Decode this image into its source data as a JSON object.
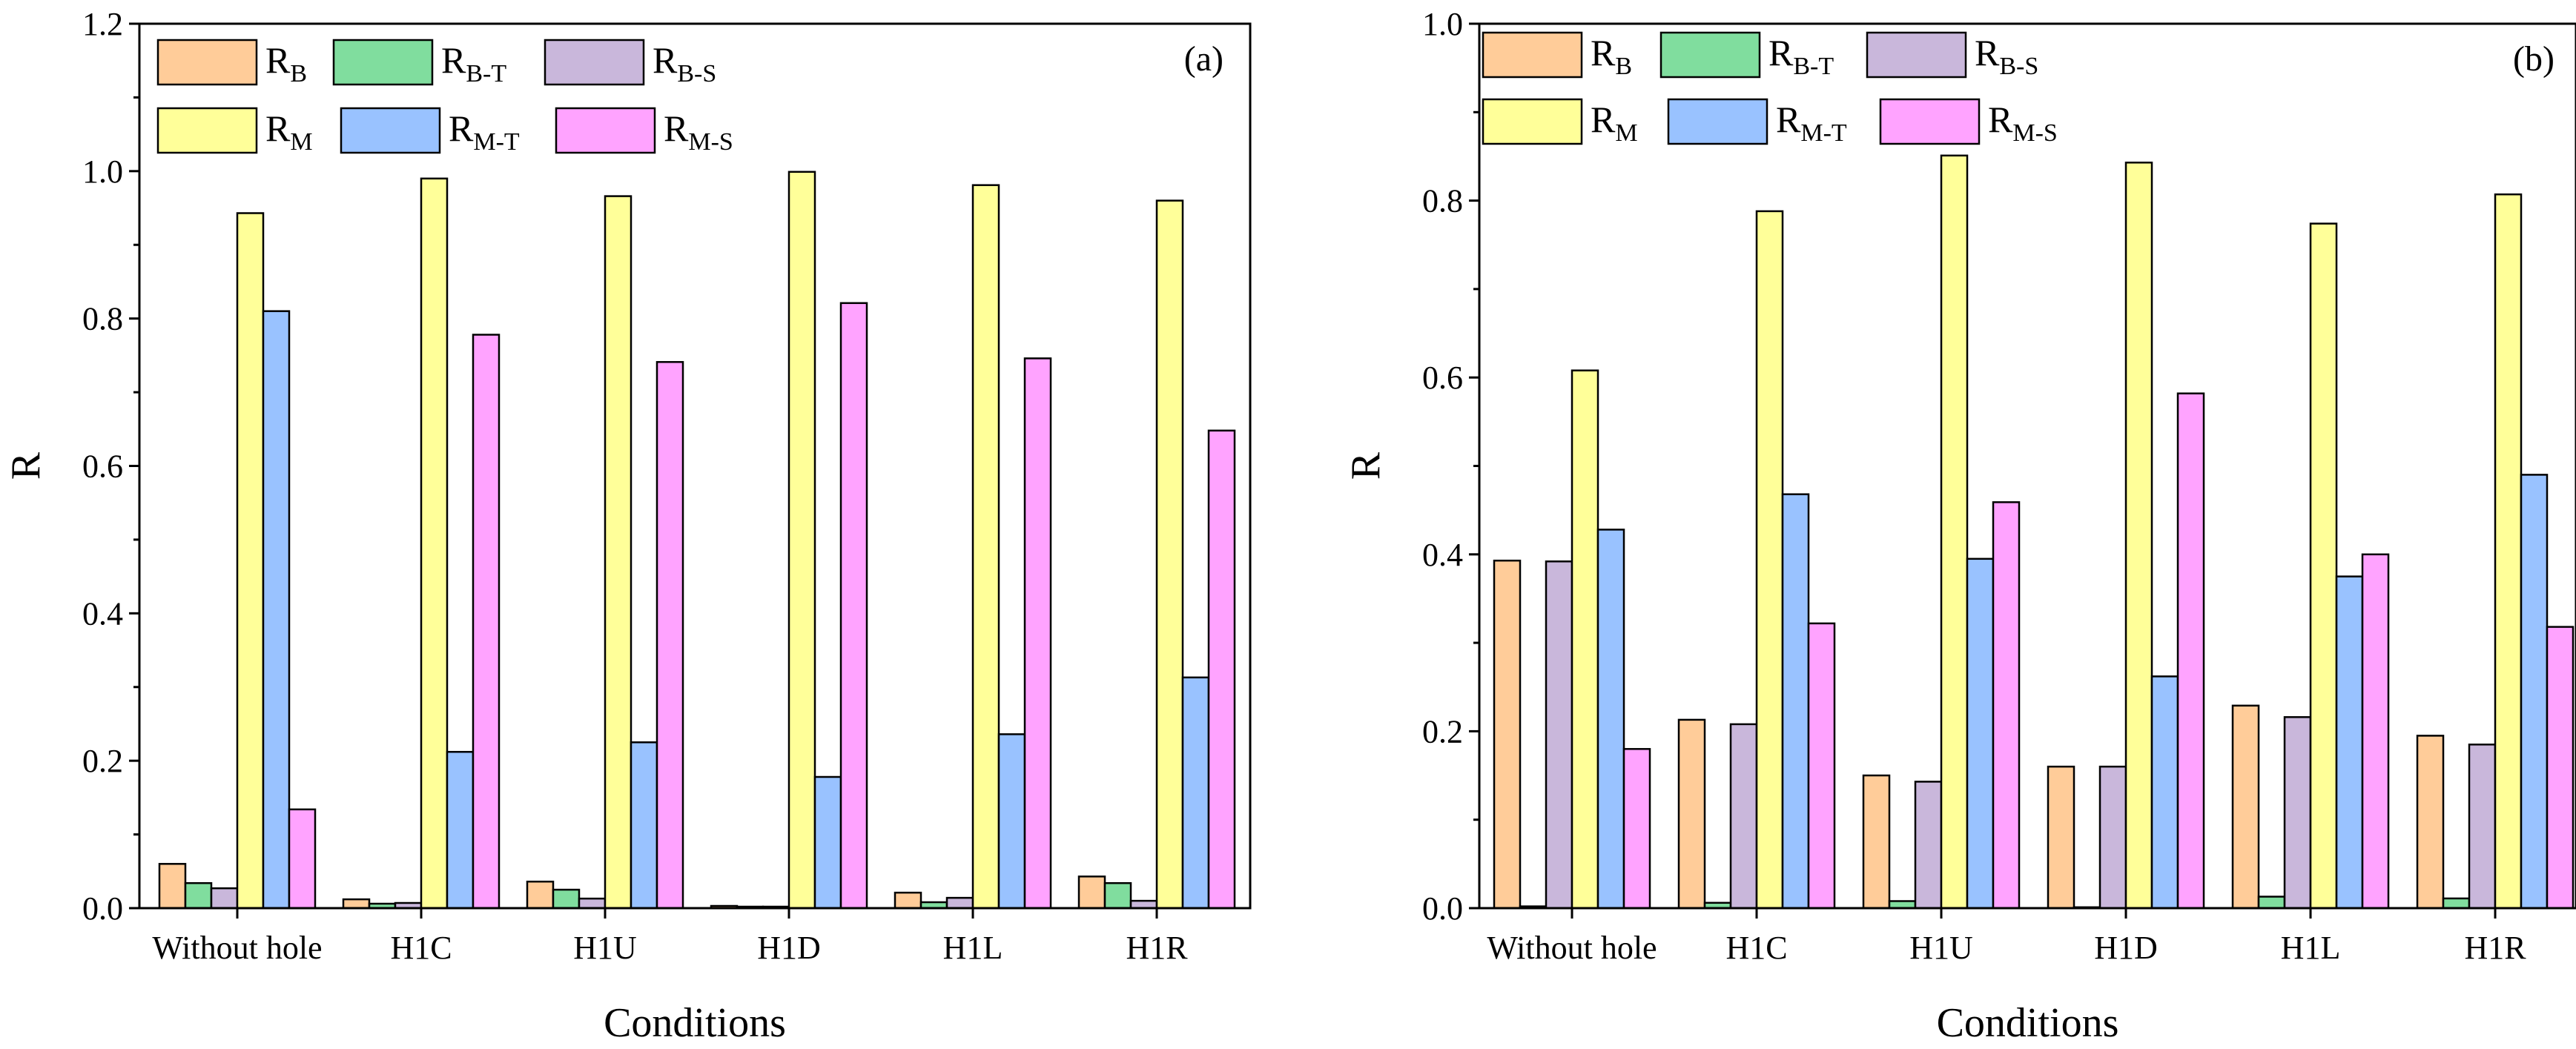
{
  "chart_data": [
    {
      "type": "bar",
      "panel_label": "(a)",
      "xlabel": "Conditions",
      "ylabel": "R",
      "ylim": [
        0,
        1.2
      ],
      "yticks": [
        "0.0",
        "0.2",
        "0.4",
        "0.6",
        "0.8",
        "1.0",
        "1.2"
      ],
      "categories": [
        "Without hole",
        "H1C",
        "H1U",
        "H1D",
        "H1L",
        "H1R"
      ],
      "series": [
        {
          "name": "R_B",
          "base": "R",
          "sub": "B",
          "color": "#FFCC99",
          "values": [
            0.06,
            0.012,
            0.036,
            0.003,
            0.021,
            0.043
          ]
        },
        {
          "name": "R_B-T",
          "base": "R",
          "sub": "B-T",
          "color": "#80DD9E",
          "values": [
            0.034,
            0.006,
            0.025,
            0.002,
            0.008,
            0.034
          ]
        },
        {
          "name": "R_B-S",
          "base": "R",
          "sub": "B-S",
          "color": "#C9B7DB",
          "values": [
            0.027,
            0.007,
            0.013,
            0.002,
            0.014,
            0.01
          ]
        },
        {
          "name": "R_M",
          "base": "R",
          "sub": "M",
          "color": "#FFFF99",
          "values": [
            0.943,
            0.99,
            0.966,
            0.999,
            0.981,
            0.96
          ]
        },
        {
          "name": "R_M-T",
          "base": "R",
          "sub": "M-T",
          "color": "#99C2FF",
          "values": [
            0.81,
            0.212,
            0.225,
            0.178,
            0.236,
            0.313
          ]
        },
        {
          "name": "R_M-S",
          "base": "R",
          "sub": "M-S",
          "color": "#FFA3FF",
          "values": [
            0.134,
            0.778,
            0.741,
            0.821,
            0.746,
            0.648
          ]
        }
      ]
    },
    {
      "type": "bar",
      "panel_label": "(b)",
      "xlabel": "Conditions",
      "ylabel": "R",
      "ylim": [
        0,
        1.0
      ],
      "yticks": [
        "0.0",
        "0.2",
        "0.4",
        "0.6",
        "0.8",
        "1.0"
      ],
      "categories": [
        "Without hole",
        "H1C",
        "H1U",
        "H1D",
        "H1L",
        "H1R"
      ],
      "series": [
        {
          "name": "R_B",
          "base": "R",
          "sub": "B",
          "color": "#FFCC99",
          "values": [
            0.393,
            0.213,
            0.15,
            0.16,
            0.229,
            0.195
          ]
        },
        {
          "name": "R_B-T",
          "base": "R",
          "sub": "B-T",
          "color": "#80DD9E",
          "values": [
            0.002,
            0.006,
            0.008,
            0.001,
            0.013,
            0.011
          ]
        },
        {
          "name": "R_B-S",
          "base": "R",
          "sub": "B-S",
          "color": "#C9B7DB",
          "values": [
            0.392,
            0.208,
            0.143,
            0.16,
            0.216,
            0.185
          ]
        },
        {
          "name": "R_M",
          "base": "R",
          "sub": "M",
          "color": "#FFFF99",
          "values": [
            0.608,
            0.788,
            0.851,
            0.843,
            0.774,
            0.807
          ]
        },
        {
          "name": "R_M-T",
          "base": "R",
          "sub": "M-T",
          "color": "#99C2FF",
          "values": [
            0.428,
            0.468,
            0.395,
            0.262,
            0.375,
            0.49
          ]
        },
        {
          "name": "R_M-S",
          "base": "R",
          "sub": "M-S",
          "color": "#FFA3FF",
          "values": [
            0.18,
            0.322,
            0.459,
            0.582,
            0.4,
            0.318
          ]
        }
      ]
    }
  ]
}
